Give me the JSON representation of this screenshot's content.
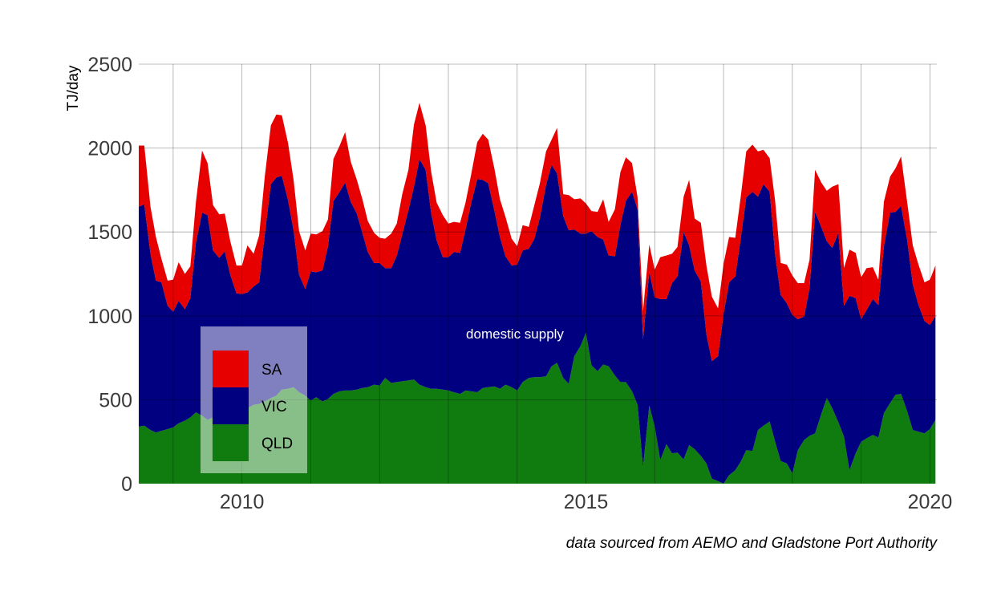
{
  "chart_data": {
    "type": "area",
    "stacked": true,
    "ylabel": "TJ/day",
    "ylim": [
      0,
      2500
    ],
    "xlim": [
      2008.5,
      2020.1
    ],
    "yticks": [
      0,
      500,
      1000,
      1500,
      2000,
      2500
    ],
    "xticks": [
      2010,
      2015,
      2020
    ],
    "grid": true,
    "annotation": "domestic supply",
    "source": "data sourced from AEMO and Gladstone Port Authority",
    "legend": {
      "placement": "lower-left",
      "entries": [
        "SA",
        "VIC",
        "QLD"
      ]
    },
    "colors": {
      "SA": "#e60000",
      "VIC": "#000080",
      "QLD": "#107c10"
    },
    "x": [
      2008.5,
      2008.58,
      2008.67,
      2008.75,
      2008.83,
      2008.92,
      2009.0,
      2009.08,
      2009.17,
      2009.25,
      2009.33,
      2009.42,
      2009.5,
      2009.58,
      2009.67,
      2009.75,
      2009.83,
      2009.92,
      2010.0,
      2010.08,
      2010.17,
      2010.25,
      2010.33,
      2010.42,
      2010.5,
      2010.58,
      2010.67,
      2010.75,
      2010.83,
      2010.92,
      2011.0,
      2011.08,
      2011.17,
      2011.25,
      2011.33,
      2011.42,
      2011.5,
      2011.58,
      2011.67,
      2011.75,
      2011.83,
      2011.92,
      2012.0,
      2012.08,
      2012.17,
      2012.25,
      2012.33,
      2012.42,
      2012.5,
      2012.58,
      2012.67,
      2012.75,
      2012.83,
      2012.92,
      2013.0,
      2013.08,
      2013.17,
      2013.25,
      2013.33,
      2013.42,
      2013.5,
      2013.58,
      2013.67,
      2013.75,
      2013.83,
      2013.92,
      2014.0,
      2014.08,
      2014.17,
      2014.25,
      2014.33,
      2014.42,
      2014.5,
      2014.58,
      2014.67,
      2014.75,
      2014.83,
      2014.92,
      2015.0,
      2015.08,
      2015.17,
      2015.25,
      2015.33,
      2015.42,
      2015.5,
      2015.58,
      2015.67,
      2015.75,
      2015.83,
      2015.92,
      2016.0,
      2016.08,
      2016.17,
      2016.25,
      2016.33,
      2016.42,
      2016.5,
      2016.58,
      2016.67,
      2016.75,
      2016.83,
      2016.92,
      2017.0,
      2017.08,
      2017.17,
      2017.25,
      2017.33,
      2017.42,
      2017.5,
      2017.58,
      2017.67,
      2017.75,
      2017.83,
      2017.92,
      2018.0,
      2018.08,
      2018.17,
      2018.25,
      2018.33,
      2018.42,
      2018.5,
      2018.58,
      2018.67,
      2018.75,
      2018.83,
      2018.92,
      2019.0,
      2019.08,
      2019.17,
      2019.25,
      2019.33,
      2019.42,
      2019.5,
      2019.58,
      2019.67,
      2019.75,
      2019.83,
      2019.92,
      2020.0,
      2020.08
    ],
    "series": [
      {
        "name": "QLD",
        "values": [
          340,
          345,
          320,
          305,
          315,
          325,
          335,
          360,
          375,
          395,
          425,
          405,
          380,
          395,
          410,
          430,
          465,
          450,
          440,
          450,
          470,
          475,
          490,
          510,
          525,
          560,
          565,
          575,
          545,
          525,
          495,
          515,
          490,
          505,
          535,
          550,
          555,
          555,
          560,
          570,
          575,
          590,
          585,
          630,
          600,
          605,
          610,
          615,
          620,
          590,
          575,
          565,
          565,
          560,
          555,
          545,
          535,
          555,
          550,
          545,
          570,
          575,
          580,
          565,
          590,
          575,
          555,
          605,
          630,
          635,
          635,
          640,
          700,
          720,
          630,
          595,
          760,
          820,
          900,
          705,
          670,
          710,
          700,
          645,
          605,
          605,
          550,
          470,
          100,
          465,
          340,
          140,
          235,
          180,
          185,
          145,
          230,
          205,
          165,
          120,
          30,
          15,
          0,
          50,
          80,
          130,
          200,
          195,
          320,
          345,
          370,
          250,
          135,
          120,
          60,
          200,
          260,
          285,
          300,
          415,
          510,
          450,
          365,
          280,
          80,
          180,
          250,
          270,
          290,
          275,
          420,
          480,
          530,
          535,
          430,
          320,
          310,
          300,
          325,
          380
        ]
      },
      {
        "name": "VIC",
        "values": [
          1310,
          1320,
          1050,
          905,
          885,
          735,
          690,
          730,
          665,
          710,
          1010,
          1210,
          1220,
          995,
          935,
          955,
          780,
          685,
          690,
          690,
          705,
          725,
          990,
          1275,
          1300,
          1275,
          1125,
          935,
          700,
          635,
          770,
          745,
          780,
          910,
          1150,
          1190,
          1240,
          1125,
          1050,
          925,
          805,
          725,
          730,
          655,
          685,
          755,
          875,
          1015,
          1150,
          1345,
          1295,
          1050,
          885,
          790,
          795,
          835,
          840,
          960,
          1120,
          1270,
          1240,
          1215,
          1045,
          905,
          765,
          725,
          750,
          785,
          770,
          825,
          950,
          1140,
          1200,
          1130,
          965,
          915,
          755,
          670,
          590,
          800,
          800,
          745,
          660,
          710,
          935,
          1080,
          1190,
          1165,
          760,
          800,
          770,
          960,
          865,
          1015,
          1050,
          1355,
          1190,
          1065,
          1040,
          770,
          700,
          745,
          1010,
          1150,
          1155,
          1330,
          1505,
          1545,
          1390,
          1440,
          1370,
          1115,
          990,
          955,
          945,
          780,
          735,
          880,
          1320,
          1115,
          935,
          955,
          1130,
          780,
          1040,
          925,
          730,
          765,
          810,
          790,
          995,
          1135,
          1090,
          1120,
          1020,
          870,
          760,
          670,
          620,
          620
        ]
      },
      {
        "name": "SA",
        "values": [
          365,
          350,
          280,
          260,
          140,
          150,
          190,
          230,
          210,
          190,
          240,
          370,
          310,
          270,
          260,
          225,
          200,
          165,
          170,
          280,
          195,
          280,
          345,
          350,
          375,
          360,
          340,
          300,
          260,
          230,
          225,
          225,
          235,
          160,
          250,
          275,
          300,
          240,
          200,
          200,
          185,
          180,
          150,
          175,
          205,
          190,
          240,
          240,
          370,
          335,
          265,
          245,
          225,
          250,
          200,
          180,
          180,
          160,
          170,
          220,
          275,
          260,
          250,
          225,
          235,
          160,
          110,
          150,
          130,
          200,
          205,
          200,
          150,
          270,
          130,
          210,
          180,
          210,
          180,
          120,
          150,
          240,
          200,
          280,
          315,
          260,
          170,
          70,
          170,
          160,
          165,
          250,
          260,
          175,
          175,
          210,
          390,
          310,
          350,
          410,
          385,
          285,
          300,
          270,
          230,
          250,
          275,
          280,
          270,
          205,
          200,
          320,
          190,
          230,
          235,
          215,
          200,
          170,
          250,
          265,
          300,
          365,
          290,
          225,
          275,
          270,
          250,
          250,
          190,
          150,
          265,
          215,
          260,
          295,
          225,
          230,
          240,
          230,
          270,
          300
        ]
      }
    ]
  }
}
